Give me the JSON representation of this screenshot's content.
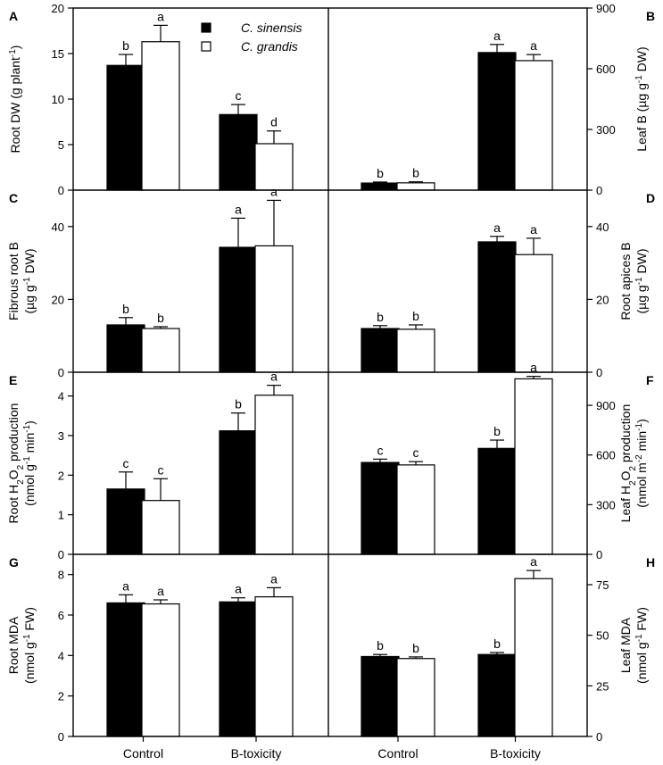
{
  "legend": {
    "series": [
      {
        "name": "C. sinensis",
        "color": "#000000"
      },
      {
        "name": "C. grandis",
        "color": "#ffffff"
      }
    ]
  },
  "x_categories": [
    "Control",
    "B-toxicity"
  ],
  "chart_data": [
    {
      "panel": "A",
      "type": "bar",
      "side": "left",
      "ylabel": [
        {
          "t": "Root DW (g plant"
        },
        {
          "t": "-1",
          "sup": true
        },
        {
          "t": ")"
        }
      ],
      "ylim": [
        0,
        20
      ],
      "yticks": [
        0,
        5,
        10,
        15,
        20
      ],
      "categories": [
        "Control",
        "B-toxicity"
      ],
      "series": [
        {
          "name": "C. sinensis",
          "values": [
            13.7,
            8.3
          ],
          "errors": [
            1.2,
            1.1
          ],
          "letters": [
            "b",
            "c"
          ]
        },
        {
          "name": "C. grandis",
          "values": [
            16.3,
            5.1
          ],
          "errors": [
            1.8,
            1.4
          ],
          "letters": [
            "a",
            "d"
          ]
        }
      ]
    },
    {
      "panel": "B",
      "type": "bar",
      "side": "right",
      "ylabel": [
        {
          "t": "Leaf B (µg g"
        },
        {
          "t": "-1",
          "sup": true
        },
        {
          "t": " DW)"
        }
      ],
      "ylim": [
        0,
        900
      ],
      "yticks": [
        0,
        300,
        600,
        900
      ],
      "categories": [
        "Control",
        "B-toxicity"
      ],
      "series": [
        {
          "name": "C. sinensis",
          "values": [
            35,
            680
          ],
          "errors": [
            5,
            40
          ],
          "letters": [
            "b",
            "a"
          ]
        },
        {
          "name": "C. grandis",
          "values": [
            36,
            640
          ],
          "errors": [
            5,
            30
          ],
          "letters": [
            "b",
            "a"
          ]
        }
      ]
    },
    {
      "panel": "C",
      "type": "bar",
      "side": "left",
      "ylabel_lines": [
        [
          {
            "t": "Fibrous root B"
          }
        ],
        [
          {
            "t": "(µg g"
          },
          {
            "t": "-1",
            "sup": true
          },
          {
            "t": " DW)"
          }
        ]
      ],
      "ylim": [
        0,
        50
      ],
      "yticks": [
        0,
        20,
        40
      ],
      "categories": [
        "Control",
        "B-toxicity"
      ],
      "series": [
        {
          "name": "C. sinensis",
          "values": [
            13,
            34.3
          ],
          "errors": [
            2,
            8
          ],
          "letters": [
            "b",
            "a"
          ]
        },
        {
          "name": "C. grandis",
          "values": [
            12,
            34.7
          ],
          "errors": [
            0.5,
            12.5
          ],
          "letters": [
            "b",
            "a"
          ]
        }
      ]
    },
    {
      "panel": "D",
      "type": "bar",
      "side": "right",
      "ylabel_lines": [
        [
          {
            "t": "Root apices B"
          }
        ],
        [
          {
            "t": "(µg g"
          },
          {
            "t": "-1",
            "sup": true
          },
          {
            "t": " DW)"
          }
        ]
      ],
      "ylim": [
        0,
        50
      ],
      "yticks": [
        0,
        20,
        40
      ],
      "categories": [
        "Control",
        "B-toxicity"
      ],
      "series": [
        {
          "name": "C. sinensis",
          "values": [
            12,
            35.8
          ],
          "errors": [
            0.8,
            1.5
          ],
          "letters": [
            "b",
            "a"
          ]
        },
        {
          "name": "C. grandis",
          "values": [
            11.8,
            32.3
          ],
          "errors": [
            1.2,
            4.5
          ],
          "letters": [
            "b",
            "a"
          ]
        }
      ]
    },
    {
      "panel": "E",
      "type": "bar",
      "side": "left",
      "ylabel_lines": [
        [
          {
            "t": "Root H"
          },
          {
            "t": "2",
            "sub": true
          },
          {
            "t": "O"
          },
          {
            "t": "2",
            "sub": true
          },
          {
            "t": " production"
          }
        ],
        [
          {
            "t": "(nmol g"
          },
          {
            "t": "-1",
            "sup": true
          },
          {
            "t": " min"
          },
          {
            "t": "-1",
            "sup": true
          },
          {
            "t": ")"
          }
        ]
      ],
      "ylim": [
        0,
        4.6
      ],
      "yticks": [
        0,
        1,
        2,
        3,
        4
      ],
      "categories": [
        "Control",
        "B-toxicity"
      ],
      "series": [
        {
          "name": "C. sinensis",
          "values": [
            1.65,
            3.12
          ],
          "errors": [
            0.43,
            0.45
          ],
          "letters": [
            "c",
            "b"
          ]
        },
        {
          "name": "C. grandis",
          "values": [
            1.36,
            4.02
          ],
          "errors": [
            0.55,
            0.25
          ],
          "letters": [
            "c",
            "a"
          ]
        }
      ]
    },
    {
      "panel": "F",
      "type": "bar",
      "side": "right",
      "ylabel_lines": [
        [
          {
            "t": "Leaf H"
          },
          {
            "t": "2",
            "sub": true
          },
          {
            "t": "O"
          },
          {
            "t": "2",
            "sub": true
          },
          {
            "t": " production"
          }
        ],
        [
          {
            "t": "(nmol m"
          },
          {
            "t": "-2",
            "sup": true
          },
          {
            "t": " min"
          },
          {
            "t": "-1",
            "sup": true
          },
          {
            "t": ")"
          }
        ]
      ],
      "ylim": [
        0,
        1100
      ],
      "yticks": [
        0,
        300,
        600,
        900
      ],
      "categories": [
        "Control",
        "B-toxicity"
      ],
      "series": [
        {
          "name": "C. sinensis",
          "values": [
            555,
            640
          ],
          "errors": [
            20,
            50
          ],
          "letters": [
            "c",
            "b"
          ]
        },
        {
          "name": "C. grandis",
          "values": [
            540,
            1060
          ],
          "errors": [
            20,
            15
          ],
          "letters": [
            "c",
            "a"
          ]
        }
      ]
    },
    {
      "panel": "G",
      "type": "bar",
      "side": "left",
      "ylabel_lines": [
        [
          {
            "t": "Root MDA"
          }
        ],
        [
          {
            "t": "(nmol g"
          },
          {
            "t": "-1",
            "sup": true
          },
          {
            "t": " FW)"
          }
        ]
      ],
      "ylim": [
        0,
        9
      ],
      "yticks": [
        0,
        2,
        4,
        6,
        8
      ],
      "categories": [
        "Control",
        "B-toxicity"
      ],
      "series": [
        {
          "name": "C. sinensis",
          "values": [
            6.6,
            6.65
          ],
          "errors": [
            0.4,
            0.2
          ],
          "letters": [
            "a",
            "a"
          ]
        },
        {
          "name": "C. grandis",
          "values": [
            6.55,
            6.9
          ],
          "errors": [
            0.2,
            0.45
          ],
          "letters": [
            "a",
            "a"
          ]
        }
      ]
    },
    {
      "panel": "H",
      "type": "bar",
      "side": "right",
      "ylabel_lines": [
        [
          {
            "t": "Leaf MDA"
          }
        ],
        [
          {
            "t": "(nmol g"
          },
          {
            "t": "-1",
            "sup": true
          },
          {
            "t": " FW)"
          }
        ]
      ],
      "ylim": [
        0,
        90
      ],
      "yticks": [
        0,
        25,
        50,
        75
      ],
      "categories": [
        "Control",
        "B-toxicity"
      ],
      "series": [
        {
          "name": "C. sinensis",
          "values": [
            39.5,
            40.5
          ],
          "errors": [
            1,
            1
          ],
          "letters": [
            "b",
            "b"
          ]
        },
        {
          "name": "C. grandis",
          "values": [
            38.5,
            78
          ],
          "errors": [
            0.8,
            4
          ],
          "letters": [
            "b",
            "a"
          ]
        }
      ]
    }
  ]
}
